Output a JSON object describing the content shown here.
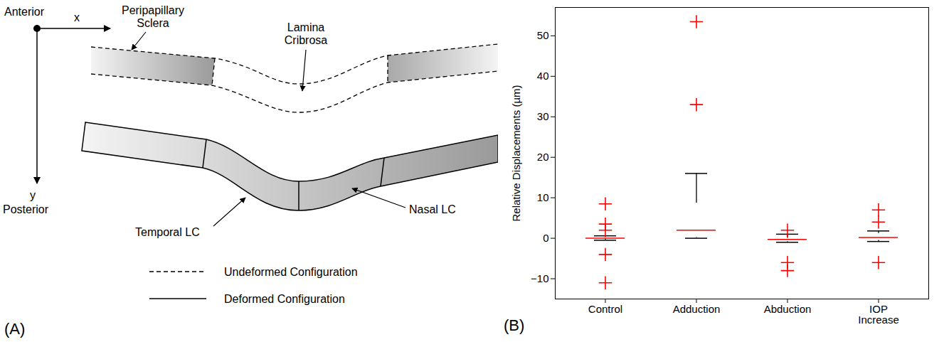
{
  "diagram": {
    "panel_label": "(A)",
    "axes": {
      "start_label": "Anterior",
      "end_label": "Posterior",
      "x": "x",
      "y": "y"
    },
    "labels": {
      "sclera": "Peripapillary Sclera",
      "lamina": "Lamina Cribrosa",
      "temporal": "Temporal LC",
      "nasal": "Nasal LC"
    },
    "legend": [
      {
        "line_style": "dashed",
        "label": "Undeformed Configuration"
      },
      {
        "line_style": "solid",
        "label": "Deformed Configuration"
      }
    ]
  },
  "chart_data": {
    "type": "box",
    "panel_label": "(B)",
    "ylabel": "Relative Displacements (µm)",
    "categories": [
      "Control",
      "Adduction",
      "Abduction",
      "IOP Increase"
    ],
    "q1": [
      -0.2,
      0.2,
      -0.8,
      -0.5
    ],
    "median": [
      0,
      2,
      -0.3,
      0.2
    ],
    "q3": [
      0.3,
      8.7,
      0,
      1.2
    ],
    "whisker_low": [
      -0.5,
      0,
      -1,
      -0.8
    ],
    "whisker_high": [
      0.6,
      16,
      1,
      1.8
    ],
    "outliers": [
      [
        8.5,
        3.5,
        2,
        -4,
        -11
      ],
      [
        53.5,
        33
      ],
      [
        2,
        -6,
        -8
      ],
      [
        7,
        4,
        -6
      ]
    ],
    "color": "#0000ff",
    "ylim": [
      -15,
      57
    ],
    "yticks": [
      -10,
      0,
      10,
      20,
      30,
      40,
      50
    ],
    "grid": false
  }
}
